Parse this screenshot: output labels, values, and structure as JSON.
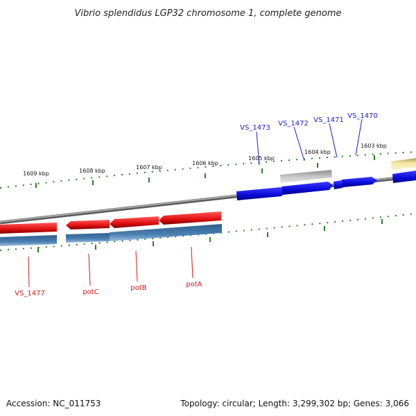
{
  "header": {
    "title": "Vibrio splendidus LGP32 chromosome 1, complete genome"
  },
  "footer": {
    "accession": "Accession: NC_011753",
    "summary": "Topology: circular; Length: 3,299,302 bp; Genes: 3,066"
  },
  "scale": {
    "labels": [
      "1609 kbp",
      "1608 kbp",
      "1607 kbp",
      "1606 kbp",
      "1605 kbp",
      "1604 kbp",
      "1603 kbp"
    ]
  },
  "genes": {
    "top": [
      "VS_1473",
      "VS_1472",
      "VS_1471",
      "VS_1470"
    ],
    "bottom": [
      "VS_1477",
      "potC",
      "potB",
      "potA"
    ]
  },
  "colors": {
    "forward_gene": "#1010e0",
    "reverse_gene": "#e01010",
    "cds": "#4a7fb0",
    "pseudo_gene": "#b8b8b8",
    "rna": "#f2e6a0",
    "ticks": "#2a7a2a",
    "backbone": "#888888",
    "top_label": "#1a1acc",
    "bottom_label": "#cc1a1a"
  }
}
